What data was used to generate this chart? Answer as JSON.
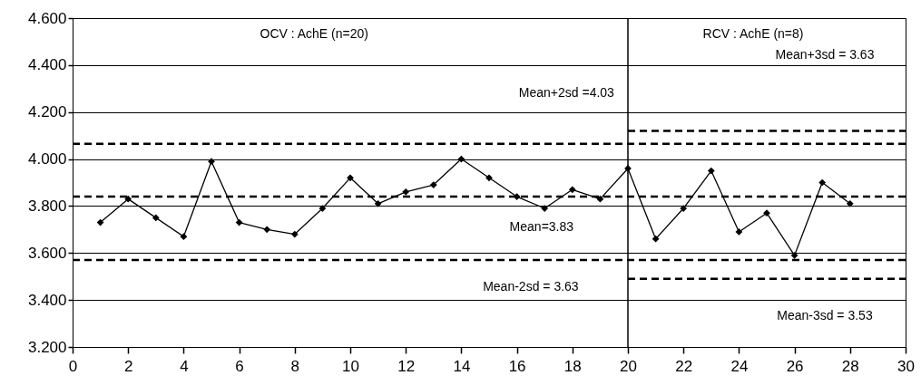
{
  "chart_data": {
    "type": "line",
    "x": [
      1,
      2,
      3,
      4,
      5,
      6,
      7,
      8,
      9,
      10,
      11,
      12,
      13,
      14,
      15,
      16,
      17,
      18,
      19,
      20,
      21,
      22,
      23,
      24,
      25,
      26,
      27,
      28
    ],
    "series": [
      {
        "color": "#000000",
        "marker": "diamond",
        "line_style": "solid",
        "values": [
          3.73,
          3.83,
          3.75,
          3.67,
          3.99,
          3.73,
          3.7,
          3.68,
          3.79,
          3.92,
          3.81,
          3.86,
          3.89,
          4.0,
          3.92,
          3.84,
          3.79,
          3.87,
          3.83,
          3.96,
          3.66,
          3.79,
          3.95,
          3.69,
          3.77,
          3.59,
          3.9,
          3.81
        ]
      },
      {
        "color": "#000000",
        "marker": "none",
        "line_style": "dashed",
        "x": [
          0,
          30
        ],
        "values": [
          4.065,
          4.065
        ]
      },
      {
        "color": "#000000",
        "marker": "none",
        "line_style": "dashed",
        "x": [
          0,
          30
        ],
        "values": [
          3.84,
          3.84
        ]
      },
      {
        "color": "#000000",
        "marker": "none",
        "line_style": "dashed",
        "x": [
          0,
          30
        ],
        "values": [
          3.57,
          3.57
        ]
      },
      {
        "color": "#000000",
        "marker": "none",
        "line_style": "dashed",
        "x": [
          20,
          30
        ],
        "values": [
          4.12,
          4.12
        ]
      },
      {
        "color": "#000000",
        "marker": "none",
        "line_style": "dashed",
        "x": [
          20,
          30
        ],
        "values": [
          3.49,
          3.49
        ]
      }
    ],
    "xlim": [
      0,
      30
    ],
    "xticks": [
      0,
      2,
      4,
      6,
      8,
      10,
      12,
      14,
      16,
      18,
      20,
      22,
      24,
      26,
      28,
      30
    ],
    "ylim": [
      3.2,
      4.6
    ],
    "yticks": [
      {
        "value": 3.2,
        "label": "3.200"
      },
      {
        "value": 3.4,
        "label": "3.400"
      },
      {
        "value": 3.6,
        "label": "3.600"
      },
      {
        "value": 3.8,
        "label": "3.800"
      },
      {
        "value": 4.0,
        "label": "4.000"
      },
      {
        "value": 4.2,
        "label": "4.200"
      },
      {
        "value": 4.4,
        "label": "4.400"
      },
      {
        "value": 4.6,
        "label": "4.600"
      }
    ],
    "grid": "y",
    "ref_lines": [
      {
        "axis": "x",
        "value": 20,
        "label": null,
        "color": "#000000"
      }
    ],
    "annotations": [
      "OCV : AchE (n=20)",
      "RCV : AchE (n=8)",
      "Mean+3sd = 3.63",
      "Mean+2sd =4.03",
      "Mean=3.83",
      "Mean-2sd = 3.63",
      "Mean-3sd = 3.53"
    ]
  }
}
